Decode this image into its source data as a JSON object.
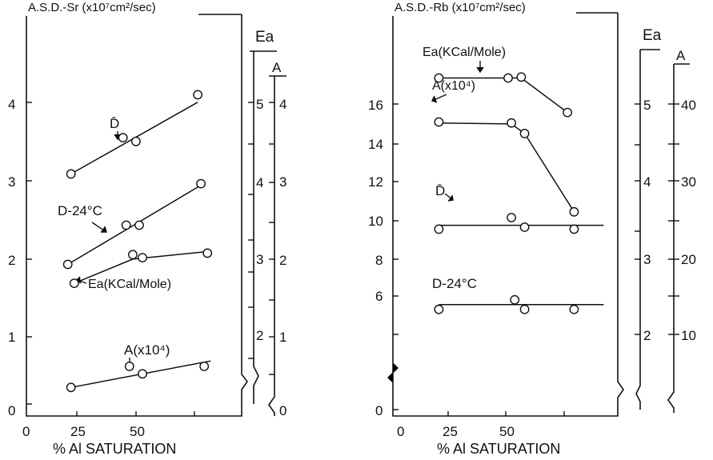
{
  "chart_data": [
    {
      "type": "scatter",
      "title": "",
      "ylabel": "A.S.D.-Sr (x10⁷cm²/sec)",
      "xlabel": "% Al  SATURATION",
      "x_ticks": [
        "0",
        "25",
        "50"
      ],
      "xlim": [
        -5,
        75
      ],
      "y_axes": [
        {
          "label": "A.S.D.-Sr (x10⁷cm²/sec)",
          "ticks": [
            "0",
            "1",
            "2",
            "3",
            "4"
          ],
          "range": [
            -0.1,
            4.8
          ]
        },
        {
          "label": "Ea",
          "ticks": [
            "2",
            "3",
            "4",
            "5"
          ]
        },
        {
          "label": "A",
          "ticks": [
            "0",
            "1",
            "2",
            "3",
            "4"
          ]
        }
      ],
      "series": [
        {
          "name": "D̄",
          "x": [
            12,
            28,
            32,
            51
          ],
          "y": [
            3.05,
            3.53,
            3.48,
            4.1
          ],
          "fit": [
            [
              12,
              3.05
            ],
            [
              51,
              4.0
            ]
          ]
        },
        {
          "name": "D-24°C",
          "x": [
            11,
            29,
            33,
            52
          ],
          "y": [
            1.85,
            2.37,
            2.37,
            2.92
          ],
          "fit": [
            [
              11,
              1.85
            ],
            [
              52,
              2.9
            ]
          ]
        },
        {
          "name": "Ea(KCal/Mole)",
          "x": [
            13,
            31,
            34,
            54
          ],
          "y": [
            1.6,
            1.98,
            1.94,
            2.0
          ],
          "fit": [
            [
              13,
              1.6
            ],
            [
              31,
              1.92
            ],
            [
              54,
              2.02
            ]
          ]
        },
        {
          "name": "A(x10⁴)",
          "x": [
            12,
            30,
            34,
            53
          ],
          "y": [
            0.22,
            0.5,
            0.4,
            0.5
          ],
          "fit": [
            [
              12,
              0.22
            ],
            [
              55,
              0.57
            ]
          ]
        }
      ]
    },
    {
      "type": "line",
      "title": "",
      "ylabel": "A.S.D.-Rb (x10⁷cm²/sec)",
      "xlabel": "% Al  SATURATION",
      "x_ticks": [
        "0",
        "25",
        "50"
      ],
      "xlim": [
        -5,
        75
      ],
      "y_axes": [
        {
          "label": "A.S.D.-Rb (x10⁷cm²/sec)",
          "ticks": [
            "0",
            "6",
            "8",
            "10",
            "12",
            "14",
            "16"
          ]
        },
        {
          "label": "Ea",
          "ticks": [
            "2",
            "3",
            "4",
            "5"
          ]
        },
        {
          "label": "A",
          "ticks": [
            "10",
            "20",
            "30",
            "40"
          ]
        }
      ],
      "series": [
        {
          "name": "Ea(KCal/Mole)",
          "x": [
            12,
            33,
            37,
            51
          ],
          "y": [
            17.4,
            17.4,
            17.45,
            15.6
          ],
          "fit": [
            [
              12,
              17.4
            ],
            [
              37,
              17.4
            ],
            [
              51,
              15.6
            ]
          ]
        },
        {
          "name": "A(x10⁴)",
          "x": [
            12,
            34,
            38,
            53
          ],
          "y": [
            15.1,
            15.05,
            14.5,
            10.4
          ],
          "fit": [
            [
              12,
              15.05
            ],
            [
              34,
              15.0
            ],
            [
              38,
              14.5
            ],
            [
              53,
              10.4
            ]
          ]
        },
        {
          "name": "D̄",
          "x": [
            12,
            34,
            38,
            53
          ],
          "y": [
            9.5,
            10.1,
            9.6,
            9.5
          ],
          "fit": [
            [
              12,
              9.7
            ],
            [
              62,
              9.7
            ]
          ]
        },
        {
          "name": "D-24°C",
          "x": [
            12,
            35,
            38,
            53
          ],
          "y": [
            5.3,
            5.8,
            5.3,
            5.3
          ],
          "fit": [
            [
              12,
              5.55
            ],
            [
              62,
              5.55
            ]
          ]
        }
      ]
    }
  ]
}
